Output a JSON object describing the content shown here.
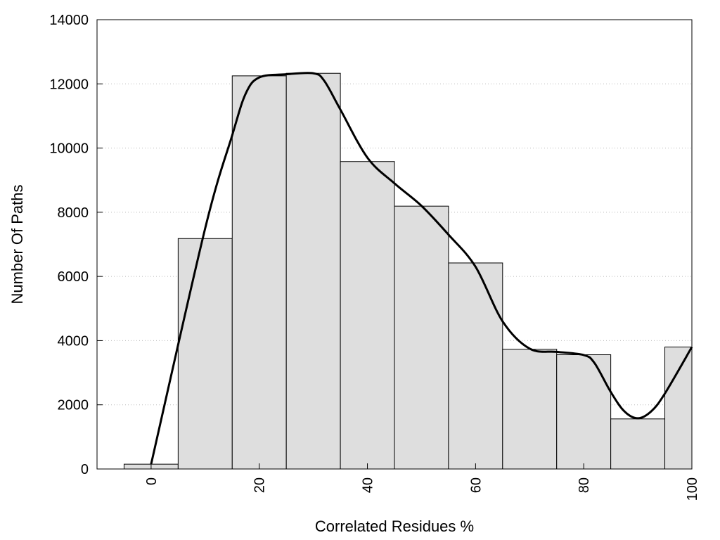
{
  "chart_data": {
    "type": "bar",
    "title": "",
    "xlabel": "Correlated Residues %",
    "ylabel": "Number Of Paths",
    "x": [
      0,
      10,
      20,
      30,
      40,
      50,
      60,
      70,
      80,
      90,
      100
    ],
    "values": [
      150,
      7180,
      12250,
      12330,
      9580,
      8190,
      6420,
      3730,
      3560,
      1560,
      3800
    ],
    "curve": {
      "x": [
        0,
        10,
        15,
        17.5,
        20,
        25,
        30,
        32,
        35,
        40,
        45,
        50,
        55,
        60,
        65,
        70,
        75,
        80,
        82,
        85,
        87.5,
        90,
        92.5,
        95,
        100
      ],
      "y": [
        150,
        7500,
        10400,
        11700,
        12200,
        12300,
        12330,
        12100,
        11200,
        9700,
        8900,
        8200,
        7300,
        6300,
        4600,
        3750,
        3650,
        3550,
        3300,
        2400,
        1800,
        1580,
        1800,
        2350,
        3800
      ]
    },
    "xlim": [
      -10,
      100
    ],
    "ylim": [
      0,
      14000
    ],
    "xticks": [
      "0",
      "20",
      "40",
      "60",
      "80",
      "100"
    ],
    "yticks": [
      "0",
      "2000",
      "4000",
      "6000",
      "8000",
      "10000",
      "12000",
      "14000"
    ],
    "grid": "horizontal dotted",
    "colors": {
      "bar_fill": "#dedede",
      "bar_stroke": "#000000",
      "curve": "#000000",
      "grid": "#bbbbbb"
    }
  }
}
